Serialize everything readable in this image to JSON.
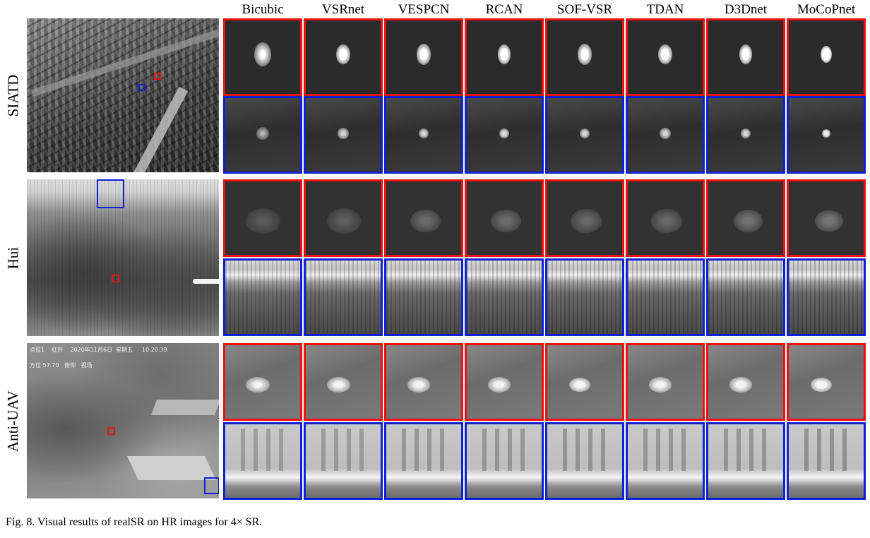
{
  "methods": [
    "Bicubic",
    "VSRnet",
    "VESPCN",
    "RCAN",
    "SOF-VSR",
    "TDAN",
    "D3Dnet",
    "MoCoPnet"
  ],
  "datasets": [
    {
      "label": "SIATD",
      "overview_name": "siatd-overview-image",
      "patch_rows": [
        {
          "box": "red",
          "style": "point-target",
          "bg": "#2b2b2b",
          "sharpness": [
            0.35,
            0.65,
            0.6,
            0.7,
            0.6,
            0.65,
            0.7,
            0.85
          ]
        },
        {
          "box": "blue",
          "style": "small-point",
          "bg": "#3a3a3a",
          "sharpness": [
            0.3,
            0.55,
            0.6,
            0.65,
            0.6,
            0.55,
            0.6,
            0.8
          ]
        }
      ]
    },
    {
      "label": "Hui",
      "overview_name": "hui-overview-image",
      "patch_rows": [
        {
          "box": "red",
          "style": "faint-blob",
          "bg": "#323232",
          "sharpness": [
            0.2,
            0.25,
            0.45,
            0.45,
            0.4,
            0.4,
            0.55,
            0.6
          ]
        },
        {
          "box": "blue",
          "style": "landscape",
          "bg": "#7a7a7a",
          "sharpness": [
            0.4,
            0.5,
            0.55,
            0.6,
            0.6,
            0.6,
            0.65,
            0.7
          ]
        }
      ]
    },
    {
      "label": "Anti-UAV",
      "overview_name": "anti-uav-overview-image",
      "osd": {
        "line1": [
          "点位1",
          "红外",
          "2020年11月6日",
          "星期五",
          "10:20:39"
        ],
        "line2": [
          "方位 57.70",
          "俯仰",
          "视场"
        ]
      },
      "patch_rows": [
        {
          "box": "red",
          "style": "uav-glow",
          "bg": "#6e6e6e",
          "sharpness": [
            0.45,
            0.5,
            0.55,
            0.55,
            0.7,
            0.55,
            0.6,
            0.75
          ]
        },
        {
          "box": "blue",
          "style": "columns",
          "bg": "#b8b8b8",
          "sharpness": [
            0.4,
            0.45,
            0.55,
            0.55,
            0.6,
            0.55,
            0.6,
            0.7
          ]
        }
      ]
    }
  ],
  "caption": "Fig. 8.  Visual results of realSR on HR images for 4× SR.",
  "colors": {
    "red_box": "#ee1111",
    "blue_box": "#1021d6"
  }
}
